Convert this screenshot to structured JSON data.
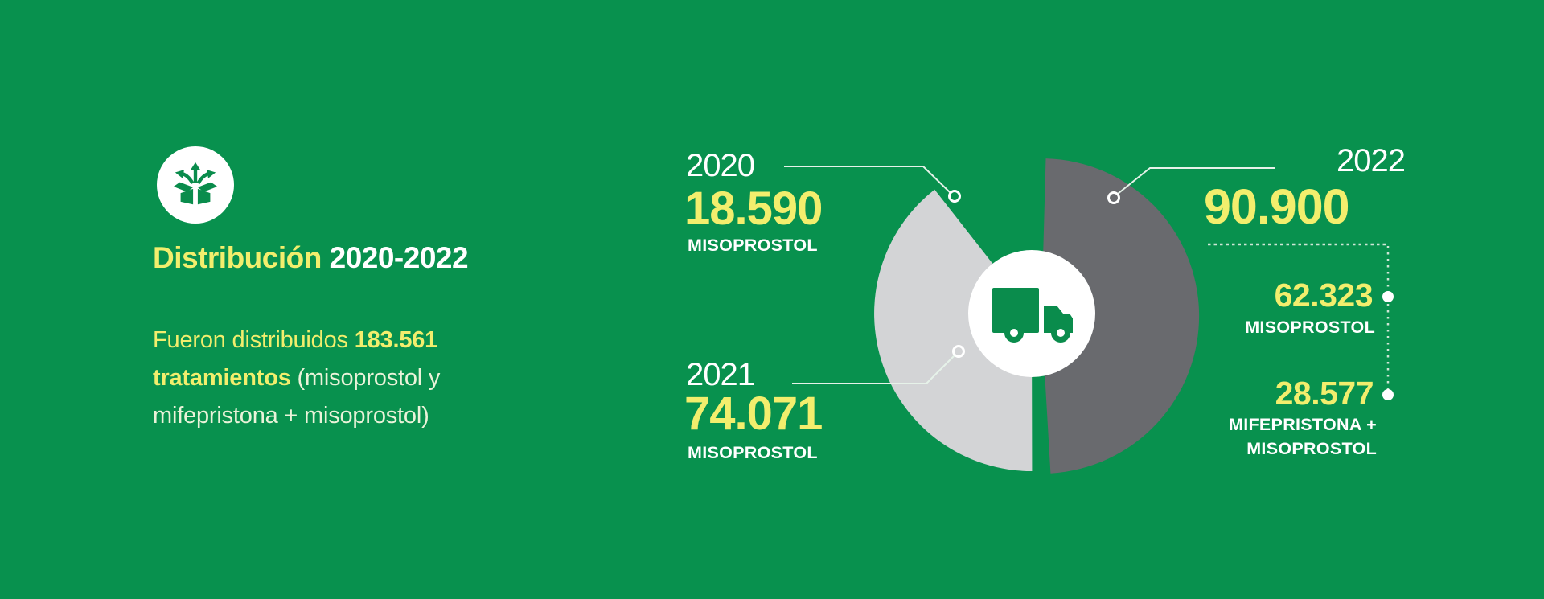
{
  "theme": {
    "background": "#08914e",
    "accent_yellow": "#f2ee6d",
    "white": "#ffffff",
    "pale_text": "#eaf3d9",
    "slice_light_gray": "#d3d4d6",
    "slice_dark_gray": "#696a6e",
    "leader_line": "#e6f2e9",
    "dashed_line": "#cfe6d6",
    "icon_green": "#0a8c4c"
  },
  "left_panel": {
    "icon_name": "distribution-box-icon",
    "title_highlight": "Distribución",
    "title_rest": " 2020-2022",
    "paragraph_lead": "Fueron distribuidos ",
    "paragraph_bold": "183.561 tratamientos",
    "paragraph_paren": " (misoprostol y mifepristona + misoprostol)"
  },
  "chart_data": {
    "type": "pie",
    "title": "Distribución 2020-2022",
    "total": 183561,
    "total_display": "183.561",
    "unit": "tratamientos",
    "legend_position": "callouts",
    "start_angle_deg": 0,
    "center_icon": "truck-icon",
    "slices": [
      {
        "year": "2022",
        "value": 90900,
        "display": "90.900",
        "color": "#696a6e",
        "explode": [
          12,
          3
        ],
        "breakdown": [
          {
            "value": 62323,
            "display": "62.323",
            "label": "MISOPROSTOL"
          },
          {
            "value": 28577,
            "display": "28.577",
            "label_line1": "MIFEPRISTONA +",
            "label_line2": "MISOPROSTOL"
          }
        ]
      },
      {
        "year": "2021",
        "value": 74071,
        "display": "74.071",
        "label": "MISOPROSTOL",
        "color": "#d3d4d6",
        "explode": null
      },
      {
        "year": "2020",
        "value": 18590,
        "display": "18.590",
        "label": "MISOPROSTOL",
        "color": null,
        "explode": null
      }
    ]
  }
}
